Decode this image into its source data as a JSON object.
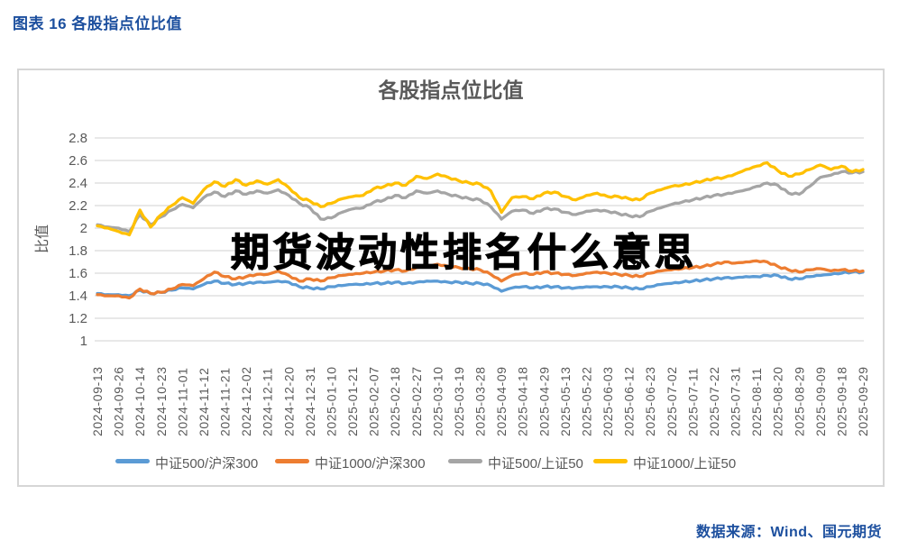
{
  "page": {
    "header_title": "图表 16 各股指点位比值",
    "watermark": "期货波动性排名什么意思",
    "source_note": "数据来源：Wind、国元期货",
    "accent_blue": "#1c4f9e"
  },
  "chart_data": {
    "type": "line",
    "title": "各股指点位比值",
    "ylabel": "比值",
    "xlabel": "",
    "ylim": [
      1,
      2.8
    ],
    "ytick_step": 0.2,
    "grid": true,
    "legend_position": "bottom",
    "grid_color": "#d9d9d9",
    "text_color": "#595959",
    "points_per_label_interval": 2,
    "x_labels": [
      "2024-09-13",
      "2024-09-26",
      "2024-10-14",
      "2024-10-23",
      "2024-11-01",
      "2024-11-12",
      "2024-11-21",
      "2024-12-02",
      "2024-12-11",
      "2024-12-20",
      "2024-12-31",
      "2025-01-10",
      "2025-01-21",
      "2025-02-07",
      "2025-02-18",
      "2025-02-27",
      "2025-03-10",
      "2025-03-19",
      "2025-03-28",
      "2025-04-09",
      "2025-04-18",
      "2025-04-29",
      "2025-05-13",
      "2025-05-22",
      "2025-06-03",
      "2025-06-12",
      "2025-06-23",
      "2025-07-02",
      "2025-07-11",
      "2025-07-22",
      "2025-07-31",
      "2025-08-11",
      "2025-08-20",
      "2025-08-29",
      "2025-09-09",
      "2025-09-18",
      "2025-09-29"
    ],
    "series": [
      {
        "name": "中证500/沪深300",
        "color": "#5B9BD5",
        "values": [
          1.42,
          1.41,
          1.41,
          1.4,
          1.45,
          1.42,
          1.43,
          1.45,
          1.47,
          1.46,
          1.5,
          1.53,
          1.51,
          1.5,
          1.51,
          1.52,
          1.52,
          1.53,
          1.52,
          1.48,
          1.47,
          1.46,
          1.48,
          1.49,
          1.5,
          1.5,
          1.51,
          1.51,
          1.52,
          1.51,
          1.52,
          1.53,
          1.53,
          1.52,
          1.52,
          1.51,
          1.51,
          1.49,
          1.44,
          1.47,
          1.48,
          1.47,
          1.48,
          1.48,
          1.47,
          1.47,
          1.48,
          1.48,
          1.48,
          1.48,
          1.47,
          1.46,
          1.48,
          1.5,
          1.51,
          1.52,
          1.53,
          1.54,
          1.55,
          1.56,
          1.56,
          1.57,
          1.57,
          1.58,
          1.58,
          1.55,
          1.55,
          1.57,
          1.58,
          1.59,
          1.6,
          1.61,
          1.61
        ]
      },
      {
        "name": "中证1000/沪深300",
        "color": "#ED7D31",
        "values": [
          1.41,
          1.4,
          1.4,
          1.38,
          1.46,
          1.42,
          1.43,
          1.46,
          1.5,
          1.49,
          1.55,
          1.61,
          1.57,
          1.55,
          1.57,
          1.59,
          1.59,
          1.62,
          1.58,
          1.53,
          1.55,
          1.53,
          1.56,
          1.58,
          1.59,
          1.6,
          1.61,
          1.62,
          1.63,
          1.62,
          1.65,
          1.66,
          1.68,
          1.66,
          1.65,
          1.64,
          1.63,
          1.59,
          1.53,
          1.58,
          1.6,
          1.59,
          1.61,
          1.6,
          1.59,
          1.58,
          1.6,
          1.61,
          1.6,
          1.59,
          1.58,
          1.57,
          1.6,
          1.62,
          1.63,
          1.64,
          1.65,
          1.66,
          1.68,
          1.7,
          1.69,
          1.7,
          1.71,
          1.7,
          1.66,
          1.63,
          1.61,
          1.63,
          1.64,
          1.62,
          1.63,
          1.62,
          1.62
        ]
      },
      {
        "name": "中证500/上证50",
        "color": "#A5A5A5",
        "values": [
          2.03,
          2.01,
          2.0,
          1.97,
          2.12,
          2.03,
          2.1,
          2.16,
          2.21,
          2.18,
          2.27,
          2.32,
          2.28,
          2.33,
          2.3,
          2.33,
          2.31,
          2.34,
          2.29,
          2.22,
          2.18,
          2.08,
          2.09,
          2.14,
          2.17,
          2.18,
          2.23,
          2.25,
          2.29,
          2.27,
          2.33,
          2.31,
          2.33,
          2.3,
          2.28,
          2.26,
          2.25,
          2.19,
          2.08,
          2.15,
          2.16,
          2.13,
          2.17,
          2.17,
          2.14,
          2.12,
          2.15,
          2.16,
          2.15,
          2.13,
          2.11,
          2.1,
          2.15,
          2.18,
          2.21,
          2.23,
          2.25,
          2.27,
          2.29,
          2.3,
          2.32,
          2.34,
          2.37,
          2.4,
          2.38,
          2.31,
          2.3,
          2.37,
          2.45,
          2.47,
          2.5,
          2.49,
          2.5
        ]
      },
      {
        "name": "中证1000/上证50",
        "color": "#FFC000",
        "values": [
          2.02,
          2.0,
          1.97,
          1.94,
          2.16,
          2.01,
          2.12,
          2.2,
          2.27,
          2.22,
          2.34,
          2.41,
          2.37,
          2.43,
          2.38,
          2.42,
          2.39,
          2.43,
          2.36,
          2.27,
          2.24,
          2.19,
          2.22,
          2.26,
          2.28,
          2.29,
          2.35,
          2.37,
          2.4,
          2.38,
          2.46,
          2.44,
          2.48,
          2.45,
          2.42,
          2.4,
          2.39,
          2.33,
          2.14,
          2.27,
          2.28,
          2.26,
          2.31,
          2.32,
          2.28,
          2.25,
          2.29,
          2.31,
          2.28,
          2.28,
          2.26,
          2.25,
          2.31,
          2.34,
          2.37,
          2.38,
          2.4,
          2.42,
          2.44,
          2.45,
          2.48,
          2.52,
          2.55,
          2.58,
          2.51,
          2.46,
          2.48,
          2.52,
          2.56,
          2.52,
          2.55,
          2.5,
          2.52
        ]
      }
    ]
  }
}
